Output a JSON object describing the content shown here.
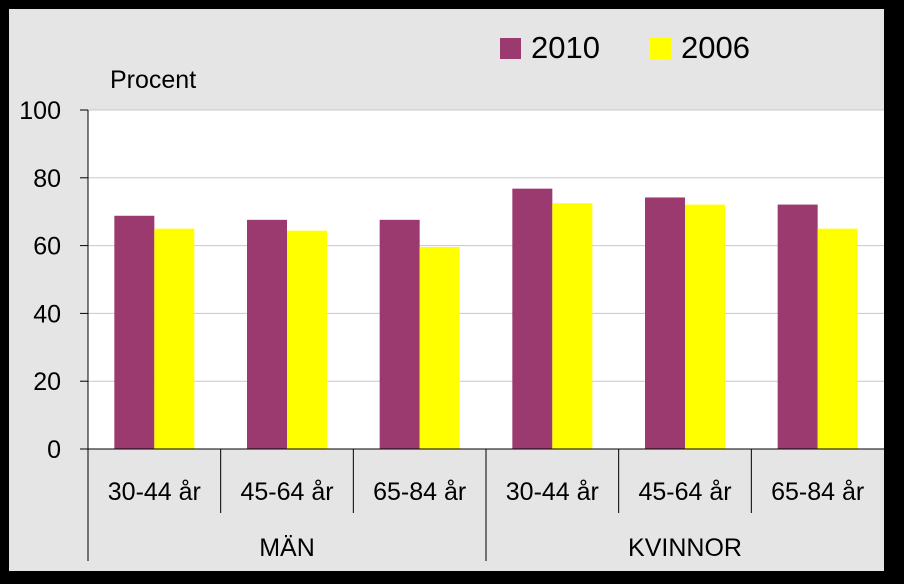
{
  "chart_data": {
    "type": "bar",
    "ylabel": "Procent",
    "ylim": [
      0,
      100
    ],
    "yticks": [
      0,
      20,
      40,
      60,
      80,
      100
    ],
    "grid": true,
    "legend_position": "top-right",
    "groups": [
      {
        "label": "MÄN",
        "categories": [
          "30-44 år",
          "45-64 år",
          "65-84 år"
        ]
      },
      {
        "label": "KVINNOR",
        "categories": [
          "30-44 år",
          "45-64 år",
          "65-84 år"
        ]
      }
    ],
    "categories": [
      "30-44 år",
      "45-64 år",
      "65-84 år",
      "30-44 år",
      "45-64 år",
      "65-84 år"
    ],
    "series": [
      {
        "name": "2010",
        "color": "#9b3a6e",
        "values": [
          68.8,
          67.6,
          67.6,
          76.8,
          74.2,
          72.1
        ]
      },
      {
        "name": "2006",
        "color": "#ffff00",
        "values": [
          65.0,
          64.4,
          59.6,
          72.5,
          72.1,
          65.0
        ]
      }
    ]
  },
  "colors": {
    "frame": "#000000",
    "panel": "#e5e5e5",
    "plot_background": "#ffffff",
    "gridline": "#c8c8c8"
  }
}
